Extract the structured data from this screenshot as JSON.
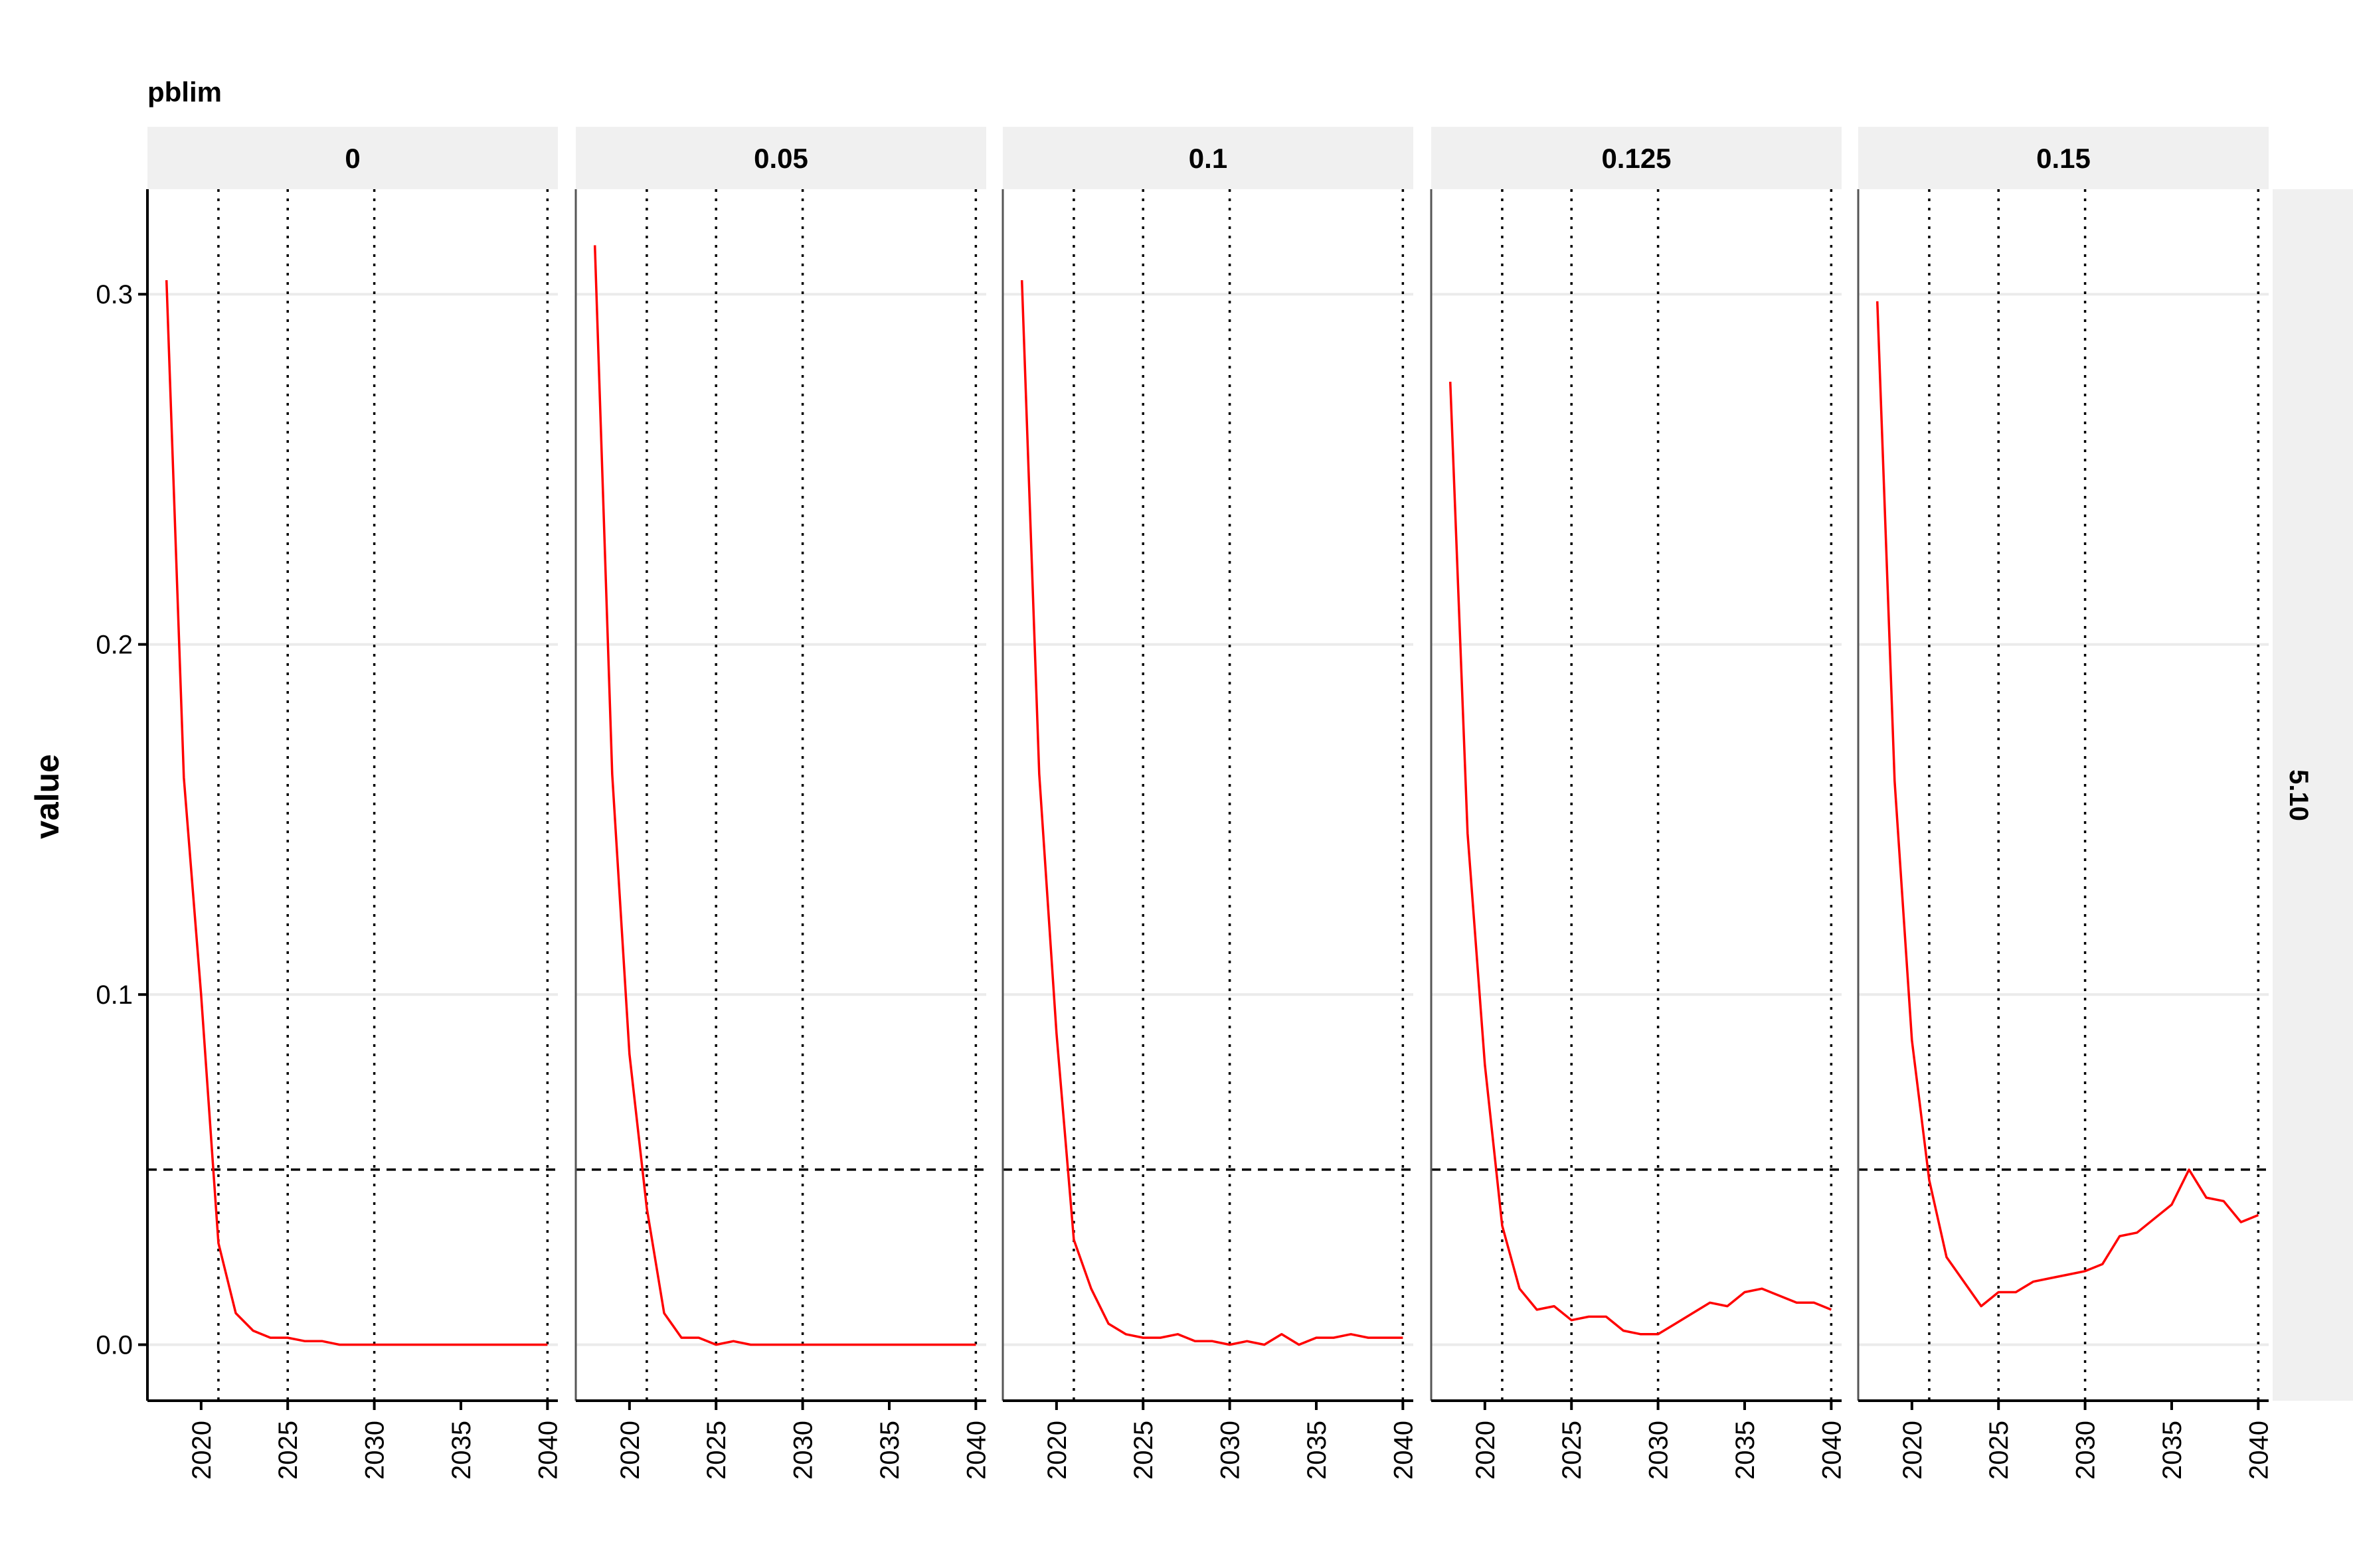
{
  "chart_data": {
    "type": "line",
    "facet_title": "pblim",
    "row_strip": "5.10",
    "ylabel": "value",
    "xlabel": "",
    "xlim": [
      2016.9,
      2040.6
    ],
    "ylim": [
      -0.016,
      0.33
    ],
    "x_ticks": [
      2020,
      2025,
      2030,
      2035,
      2040
    ],
    "x_tick_labels": [
      "2020",
      "2025",
      "2030",
      "2035",
      "2040"
    ],
    "y_ticks": [
      0.0,
      0.1,
      0.2,
      0.3
    ],
    "y_tick_labels": [
      "0.0",
      "0.1",
      "0.2",
      "0.3"
    ],
    "vlines": [
      2021,
      2025,
      2030,
      2040
    ],
    "hline": 0.05,
    "grid": "horizontal major",
    "line_color": "#ff0000",
    "x": [
      2018,
      2019,
      2020,
      2021,
      2022,
      2023,
      2024,
      2025,
      2026,
      2027,
      2028,
      2029,
      2030,
      2031,
      2032,
      2033,
      2034,
      2035,
      2036,
      2037,
      2038,
      2039,
      2040
    ],
    "panels": [
      {
        "label": "0",
        "values": [
          0.304,
          0.162,
          0.1,
          0.029,
          0.009,
          0.004,
          0.002,
          0.002,
          0.001,
          0.001,
          0.0,
          0.0,
          0.0,
          0.0,
          0.0,
          0.0,
          0.0,
          0.0,
          0.0,
          0.0,
          0.0,
          0.0,
          0.0
        ]
      },
      {
        "label": "0.05",
        "values": [
          0.314,
          0.163,
          0.083,
          0.039,
          0.009,
          0.002,
          0.002,
          0.0,
          0.001,
          0.0,
          0.0,
          0.0,
          0.0,
          0.0,
          0.0,
          0.0,
          0.0,
          0.0,
          0.0,
          0.0,
          0.0,
          0.0,
          0.0
        ]
      },
      {
        "label": "0.1",
        "values": [
          0.304,
          0.163,
          0.089,
          0.03,
          0.016,
          0.006,
          0.003,
          0.002,
          0.002,
          0.003,
          0.001,
          0.001,
          0.0,
          0.001,
          0.0,
          0.003,
          0.0,
          0.002,
          0.002,
          0.003,
          0.002,
          0.002,
          0.002
        ]
      },
      {
        "label": "0.125",
        "values": [
          0.275,
          0.146,
          0.08,
          0.034,
          0.016,
          0.01,
          0.011,
          0.007,
          0.008,
          0.008,
          0.004,
          0.003,
          0.003,
          0.006,
          0.009,
          0.012,
          0.011,
          0.015,
          0.016,
          0.014,
          0.012,
          0.012,
          0.01
        ]
      },
      {
        "label": "0.15",
        "values": [
          0.298,
          0.161,
          0.087,
          0.047,
          0.025,
          null,
          0.011,
          0.015,
          0.015,
          0.018,
          0.019,
          0.02,
          0.021,
          0.023,
          0.031,
          0.032,
          0.036,
          0.04,
          0.05,
          0.042,
          0.041,
          0.035,
          0.037
        ]
      }
    ]
  }
}
